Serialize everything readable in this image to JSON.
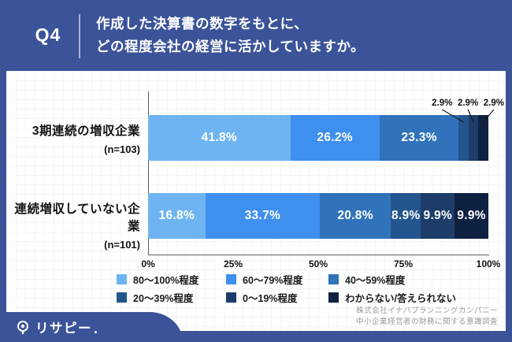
{
  "theme": {
    "primary_blue": "#3b5399",
    "panel_bg": "#ffffff"
  },
  "header": {
    "q_label": "Q4",
    "title_line1": "作成した決算書の数字をもとに、",
    "title_line2": "どの程度会社の経営に活かしていますか。"
  },
  "chart_data": {
    "type": "bar",
    "stacked": true,
    "orientation": "horizontal",
    "categories": [
      "3期連続の増収企業",
      "連続増収していない企業"
    ],
    "category_sublabels": [
      "(n=103)",
      "(n=101)"
    ],
    "legend": [
      "80〜100%程度",
      "60〜79%程度",
      "40〜59%程度",
      "20〜39%程度",
      "0〜19%程度",
      "わからない/答えられない"
    ],
    "legend_position": "bottom",
    "colors": [
      "#6fb4f2",
      "#3f8fee",
      "#3173ba",
      "#23568e",
      "#1d3d68",
      "#0f2140"
    ],
    "series": [
      {
        "name": "80〜100%程度",
        "values": [
          41.8,
          16.8
        ]
      },
      {
        "name": "60〜79%程度",
        "values": [
          26.2,
          33.7
        ]
      },
      {
        "name": "40〜59%程度",
        "values": [
          23.3,
          20.8
        ]
      },
      {
        "name": "20〜39%程度",
        "values": [
          2.9,
          8.9
        ]
      },
      {
        "name": "0〜19%程度",
        "values": [
          2.9,
          9.9
        ]
      },
      {
        "name": "わからない/答えられない",
        "values": [
          2.9,
          9.9
        ]
      }
    ],
    "x_ticks": [
      "0%",
      "25%",
      "50%",
      "75%",
      "100%"
    ],
    "xlim": [
      0,
      100
    ],
    "value_suffix": "%",
    "callout_threshold": 5,
    "grid": "subtle-graph-paper"
  },
  "footer": {
    "logo_text": "リサピー",
    "credit_line1": "株式会社イナバプランニングカンパニー",
    "credit_line2": "中小企業経営者の財務に関する意識調査"
  }
}
